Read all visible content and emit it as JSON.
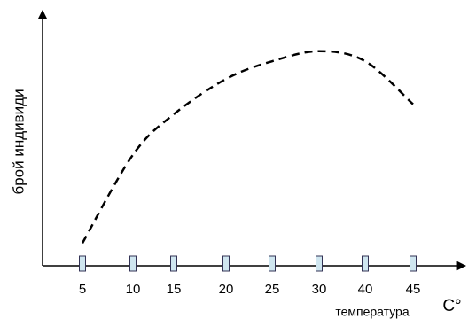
{
  "chart_data": {
    "type": "line",
    "x_label": "температура",
    "unit": "C°",
    "y_label": "брой индивиди",
    "categories": [
      "5",
      "10",
      "15",
      "20",
      "25",
      "30",
      "40",
      "45"
    ],
    "values": [
      9,
      44,
      60,
      74,
      81,
      85,
      81,
      64
    ],
    "ylim": [
      0,
      100
    ],
    "color": "#000000",
    "dashed": true
  }
}
